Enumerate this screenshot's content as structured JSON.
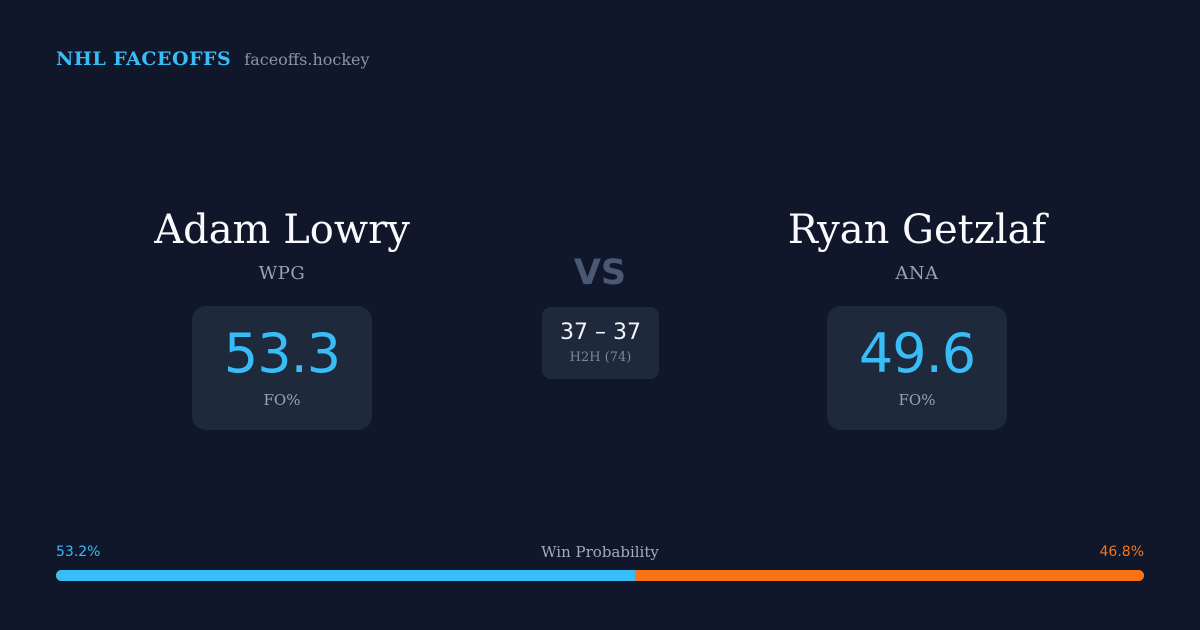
{
  "brand": {
    "name": "NHL FACEOFFS",
    "domain": "faceoffs.hockey"
  },
  "players": [
    {
      "name": "Adam Lowry",
      "team": "WPG",
      "fo_pct": "53.3",
      "fo_label": "FO%"
    },
    {
      "name": "Ryan Getzlaf",
      "team": "ANA",
      "fo_pct": "49.6",
      "fo_label": "FO%"
    }
  ],
  "vs_label": "VS",
  "head_to_head": {
    "score": "37 – 37",
    "label": "H2H (74)"
  },
  "win_probability": {
    "title": "Win Probability",
    "left_label": "53.2%",
    "right_label": "46.8%",
    "left_value": 53.2,
    "right_value": 46.8
  },
  "colors": {
    "background": "#10172a",
    "card": "#1e293b",
    "accent_left": "#38bdf8",
    "accent_right": "#f97316"
  }
}
